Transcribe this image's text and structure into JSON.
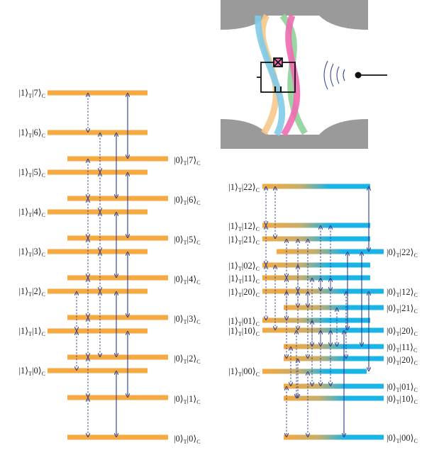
{
  "colors": {
    "orange": "#F5A940",
    "cyan": "#1BB4E6",
    "arrow_solid": "#2B3A8F",
    "arrow_dashed": "#2B3A8F",
    "cavity_gray": "#9A9A9A",
    "strand_pink": "#EE6BB0",
    "strand_green": "#8ED19A",
    "strand_blue": "#7FCBEA",
    "strand_orange": "#F5C98A",
    "circuit_black": "#111111",
    "antenna_blue": "#2B3A8F"
  },
  "left_levels": [
    {
      "id": "L-1-7",
      "label": {
        "a": "1",
        "b": "7"
      },
      "side": "left"
    },
    {
      "id": "L-1-6",
      "label": {
        "a": "1",
        "b": "6"
      },
      "side": "left"
    },
    {
      "id": "L-0-7",
      "label": {
        "a": "0",
        "b": "7"
      },
      "side": "right"
    },
    {
      "id": "L-1-5",
      "label": {
        "a": "1",
        "b": "5"
      },
      "side": "left"
    },
    {
      "id": "L-0-6",
      "label": {
        "a": "0",
        "b": "6"
      },
      "side": "right"
    },
    {
      "id": "L-1-4",
      "label": {
        "a": "1",
        "b": "4"
      },
      "side": "left"
    },
    {
      "id": "L-0-5",
      "label": {
        "a": "0",
        "b": "5"
      },
      "side": "right"
    },
    {
      "id": "L-1-3",
      "label": {
        "a": "1",
        "b": "3"
      },
      "side": "left"
    },
    {
      "id": "L-0-4",
      "label": {
        "a": "0",
        "b": "4"
      },
      "side": "right"
    },
    {
      "id": "L-1-2",
      "label": {
        "a": "1",
        "b": "2"
      },
      "side": "left"
    },
    {
      "id": "L-0-3",
      "label": {
        "a": "0",
        "b": "3"
      },
      "side": "right"
    },
    {
      "id": "L-1-1",
      "label": {
        "a": "1",
        "b": "1"
      },
      "side": "left"
    },
    {
      "id": "L-0-2",
      "label": {
        "a": "0",
        "b": "2"
      },
      "side": "right"
    },
    {
      "id": "L-1-0",
      "label": {
        "a": "1",
        "b": "0"
      },
      "side": "left"
    },
    {
      "id": "L-0-1",
      "label": {
        "a": "0",
        "b": "1"
      },
      "side": "right"
    },
    {
      "id": "L-0-0",
      "label": {
        "a": "0",
        "b": "0"
      },
      "side": "right"
    }
  ],
  "right_levels": [
    {
      "id": "R-1-22",
      "label": {
        "a": "1",
        "b": "22"
      },
      "side": "left"
    },
    {
      "id": "R-1-12",
      "label": {
        "a": "1",
        "b": "12"
      },
      "side": "left"
    },
    {
      "id": "R-1-21",
      "label": {
        "a": "1",
        "b": "21"
      },
      "side": "left"
    },
    {
      "id": "R-0-22",
      "label": {
        "a": "0",
        "b": "22"
      },
      "side": "right"
    },
    {
      "id": "R-1-02",
      "label": {
        "a": "1",
        "b": "02"
      },
      "side": "left"
    },
    {
      "id": "R-1-11",
      "label": {
        "a": "1",
        "b": "11"
      },
      "side": "left"
    },
    {
      "id": "R-1-20",
      "label": {
        "a": "1",
        "b": "20"
      },
      "side": "left"
    },
    {
      "id": "R-0-12",
      "label": {
        "a": "0",
        "b": "12"
      },
      "side": "right"
    },
    {
      "id": "R-0-21",
      "label": {
        "a": "0",
        "b": "21"
      },
      "side": "right"
    },
    {
      "id": "R-1-01",
      "label": {
        "a": "1",
        "b": "01"
      },
      "side": "left"
    },
    {
      "id": "R-1-10",
      "label": {
        "a": "1",
        "b": "10"
      },
      "side": "left"
    },
    {
      "id": "R-0-20",
      "label": {
        "a": "0",
        "b": "20"
      },
      "side": "right"
    },
    {
      "id": "R-0-11",
      "label": {
        "a": "0",
        "b": "11"
      },
      "side": "right"
    },
    {
      "id": "R-0-20b",
      "label": {
        "a": "0",
        "b": "20"
      },
      "side": "right"
    },
    {
      "id": "R-1-00",
      "label": {
        "a": "1",
        "b": "00"
      },
      "side": "left"
    },
    {
      "id": "R-0-01",
      "label": {
        "a": "0",
        "b": "01"
      },
      "side": "right"
    },
    {
      "id": "R-0-10",
      "label": {
        "a": "0",
        "b": "10"
      },
      "side": "right"
    },
    {
      "id": "R-0-00",
      "label": {
        "a": "0",
        "b": "00"
      },
      "side": "right"
    }
  ],
  "subscripts": {
    "t": "T",
    "c": "C"
  }
}
